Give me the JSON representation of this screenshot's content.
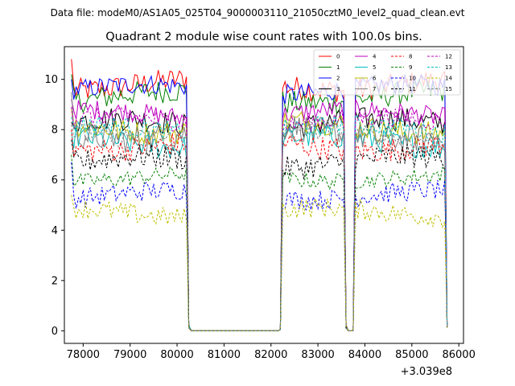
{
  "chart_data": {
    "type": "line",
    "suptitle": "Data file: modeM0/AS1A05_025T04_9000003110_21050cztM0_level2_quad_clean.evt",
    "title": "Quadrant 2 module wise count rates with 100.0s bins.",
    "xlabel": "",
    "ylabel": "",
    "x_offset_label": "+3.039e8",
    "xlim": [
      77600,
      86100
    ],
    "ylim": [
      -0.5,
      11.3
    ],
    "x_ticks": [
      78000,
      79000,
      80000,
      81000,
      82000,
      83000,
      84000,
      85000,
      86000
    ],
    "x_tick_labels": [
      "78000",
      "79000",
      "80000",
      "81000",
      "82000",
      "83000",
      "84000",
      "85000",
      "86000"
    ],
    "y_ticks": [
      0,
      2,
      4,
      6,
      8,
      10
    ],
    "y_tick_labels": [
      "0",
      "2",
      "4",
      "6",
      "8",
      "10"
    ],
    "segments": [
      {
        "start": 77750,
        "end": 80250,
        "step": 50
      },
      {
        "start": 82200,
        "end": 83600,
        "step": 50
      },
      {
        "start": 83800,
        "end": 85750,
        "step": 50
      }
    ],
    "gaps": [
      {
        "from": 80250,
        "to": 82200
      },
      {
        "from": 83600,
        "to": 83800
      }
    ],
    "series": [
      {
        "name": "0",
        "color": "#ff0000",
        "dash": "solid",
        "level": 9.8,
        "start_value": 10.8,
        "amplitude": 0.3
      },
      {
        "name": "1",
        "color": "#008000",
        "dash": "solid",
        "level": 9.3,
        "start_value": 10.2,
        "amplitude": 0.3
      },
      {
        "name": "2",
        "color": "#0000ff",
        "dash": "solid",
        "level": 9.6,
        "start_value": 10.0,
        "amplitude": 0.25
      },
      {
        "name": "3",
        "color": "#000000",
        "dash": "solid",
        "level": 8.2,
        "start_value": 8.3,
        "amplitude": 0.3
      },
      {
        "name": "4",
        "color": "#bf00bf",
        "dash": "solid",
        "level": 8.6,
        "start_value": 9.2,
        "amplitude": 0.25
      },
      {
        "name": "5",
        "color": "#00bfbf",
        "dash": "solid",
        "level": 7.5,
        "start_value": 7.9,
        "amplitude": 0.3
      },
      {
        "name": "6",
        "color": "#bfbf00",
        "dash": "solid",
        "level": 8.1,
        "start_value": 8.8,
        "amplitude": 0.3
      },
      {
        "name": "7",
        "color": "#808080",
        "dash": "solid",
        "level": 7.9,
        "start_value": 9.5,
        "amplitude": 0.35
      },
      {
        "name": "8",
        "color": "#ff0000",
        "dash": "dashed",
        "level": 7.4,
        "start_value": 8.0,
        "amplitude": 0.3
      },
      {
        "name": "9",
        "color": "#008000",
        "dash": "dashed",
        "level": 6.1,
        "start_value": 7.0,
        "amplitude": 0.2
      },
      {
        "name": "10",
        "color": "#0000ff",
        "dash": "dashed",
        "level": 5.4,
        "start_value": 6.7,
        "amplitude": 0.25
      },
      {
        "name": "11",
        "color": "#000000",
        "dash": "dashed",
        "level": 6.7,
        "start_value": 7.6,
        "amplitude": 0.3
      },
      {
        "name": "12",
        "color": "#bf00bf",
        "dash": "dashed",
        "level": 8.3,
        "start_value": 8.9,
        "amplitude": 0.25
      },
      {
        "name": "13",
        "color": "#00bfbf",
        "dash": "dashed",
        "level": 8.0,
        "start_value": 8.5,
        "amplitude": 0.25
      },
      {
        "name": "14",
        "color": "#bfbf00",
        "dash": "dashed",
        "level": 4.7,
        "start_value": 5.4,
        "amplitude": 0.25
      },
      {
        "name": "15",
        "color": "#808080",
        "dash": "dashed",
        "level": 7.8,
        "start_value": 8.2,
        "amplitude": 0.25
      }
    ],
    "legend_position": "top-right",
    "legend_columns": 4,
    "grid": false
  }
}
